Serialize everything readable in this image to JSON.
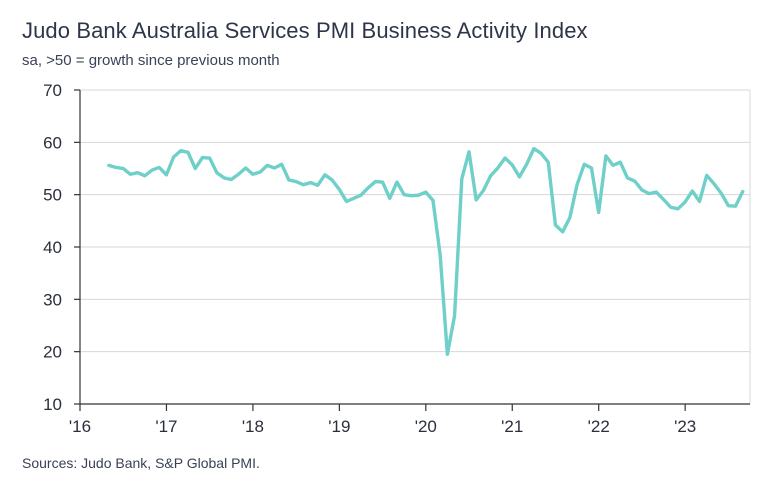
{
  "chart_data": {
    "type": "line",
    "title": "Judo Bank Australia Services PMI Business Activity Index",
    "subtitle": "sa, >50 = growth since previous month",
    "source": "Sources: Judo Bank, S&P Global PMI.",
    "xlabel": "",
    "ylabel": "",
    "ylim": [
      10,
      70
    ],
    "yticks": [
      10,
      20,
      30,
      40,
      50,
      60,
      70
    ],
    "xlim": [
      2016.0,
      2023.75
    ],
    "xticks": [
      {
        "value": 2016,
        "label": "'16"
      },
      {
        "value": 2017,
        "label": "'17"
      },
      {
        "value": 2018,
        "label": "'18"
      },
      {
        "value": 2019,
        "label": "'19"
      },
      {
        "value": 2020,
        "label": "'20"
      },
      {
        "value": 2021,
        "label": "'21"
      },
      {
        "value": 2022,
        "label": "'22"
      },
      {
        "value": 2023,
        "label": "'23"
      }
    ],
    "grid": true,
    "colors": {
      "line": "#6fcfc9",
      "grid": "#d7d7d7",
      "axis": "#333333"
    },
    "series": [
      {
        "name": "Services PMI Business Activity Index",
        "x_start": 2016.333,
        "step": 0.08333,
        "values": [
          55.6,
          55.2,
          55.0,
          53.9,
          54.2,
          53.6,
          54.7,
          55.2,
          53.8,
          57.2,
          58.4,
          58.1,
          55.0,
          57.1,
          57.0,
          54.2,
          53.2,
          52.9,
          53.9,
          55.1,
          53.9,
          54.3,
          55.6,
          55.1,
          55.8,
          52.8,
          52.5,
          51.9,
          52.3,
          51.8,
          53.8,
          52.8,
          51.0,
          48.7,
          49.3,
          49.9,
          51.3,
          52.5,
          52.4,
          49.3,
          52.4,
          50.0,
          49.8,
          49.9,
          50.5,
          48.9,
          38.5,
          19.5,
          26.9,
          53.0,
          58.2,
          49.0,
          50.8,
          53.6,
          55.1,
          57.0,
          55.7,
          53.4,
          55.8,
          58.8,
          57.9,
          56.2,
          44.2,
          42.9,
          45.6,
          51.9,
          55.8,
          55.1,
          46.6,
          57.4,
          55.6,
          56.2,
          53.2,
          52.6,
          50.9,
          50.2,
          50.5,
          49.1,
          47.6,
          47.3,
          48.6,
          50.7,
          48.7,
          53.7,
          52.1,
          50.3,
          47.9,
          47.8,
          50.6
        ]
      }
    ]
  }
}
